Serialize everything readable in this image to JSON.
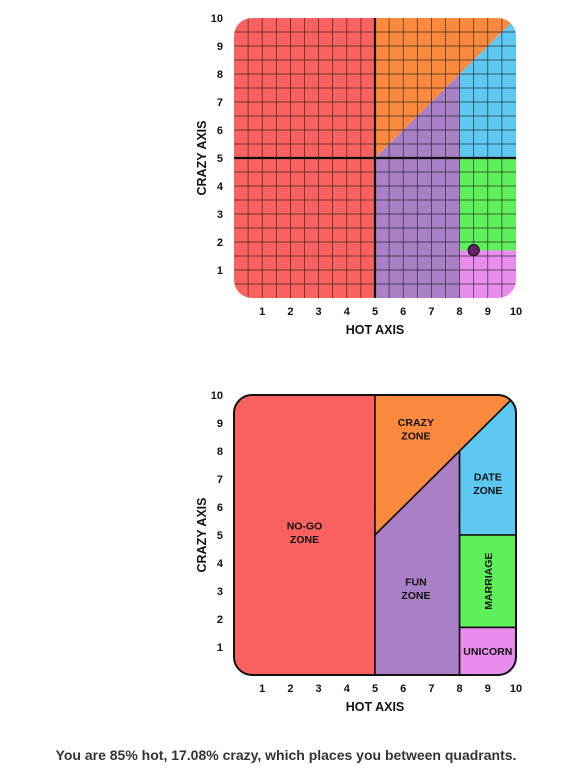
{
  "chart_data": [
    {
      "type": "scatter",
      "xlabel": "HOT AXIS",
      "ylabel": "CRAZY AXIS",
      "xlim": [
        0,
        10
      ],
      "ylim": [
        0,
        10
      ],
      "x_ticks": [
        "1",
        "2",
        "3",
        "4",
        "5",
        "6",
        "7",
        "8",
        "9",
        "10"
      ],
      "y_ticks": [
        "1",
        "2",
        "3",
        "4",
        "5",
        "6",
        "7",
        "8",
        "9",
        "10"
      ],
      "grid": true,
      "quadrant_lines": {
        "x": 5,
        "y": 5
      },
      "points": [
        {
          "x": 8.5,
          "y": 1.708
        }
      ],
      "regions": [
        {
          "id": "no-go",
          "color": "#f9625e",
          "polygon": [
            [
              0,
              0
            ],
            [
              5,
              0
            ],
            [
              5,
              10
            ],
            [
              0,
              10
            ]
          ]
        },
        {
          "id": "crazy",
          "color": "#fb8a3e",
          "polygon": [
            [
              5,
              5
            ],
            [
              10,
              10
            ],
            [
              5,
              10
            ]
          ]
        },
        {
          "id": "fun",
          "color": "#a97fc6",
          "polygon": [
            [
              5,
              0
            ],
            [
              8,
              0
            ],
            [
              8,
              8
            ],
            [
              5,
              5
            ]
          ]
        },
        {
          "id": "date",
          "color": "#5dc9f2",
          "polygon": [
            [
              8,
              5
            ],
            [
              10,
              5
            ],
            [
              10,
              10
            ],
            [
              8,
              8
            ]
          ]
        },
        {
          "id": "marriage",
          "color": "#5ef05a",
          "polygon": [
            [
              8,
              1.7
            ],
            [
              10,
              1.7
            ],
            [
              10,
              5
            ],
            [
              8,
              5
            ]
          ]
        },
        {
          "id": "unicorn",
          "color": "#ea8ced",
          "polygon": [
            [
              8,
              0
            ],
            [
              10,
              0
            ],
            [
              10,
              1.7
            ],
            [
              8,
              1.7
            ]
          ]
        }
      ]
    },
    {
      "type": "area",
      "xlabel": "HOT AXIS",
      "ylabel": "CRAZY AXIS",
      "xlim": [
        0,
        10
      ],
      "ylim": [
        0,
        10
      ],
      "x_ticks": [
        "1",
        "2",
        "3",
        "4",
        "5",
        "6",
        "7",
        "8",
        "9",
        "10"
      ],
      "y_ticks": [
        "1",
        "2",
        "3",
        "4",
        "5",
        "6",
        "7",
        "8",
        "9",
        "10"
      ],
      "grid": false,
      "zones": [
        {
          "id": "no-go",
          "lines": [
            "NO-GO",
            "ZONE"
          ],
          "color": "#f9625e",
          "polygon": [
            [
              0,
              0
            ],
            [
              5,
              0
            ],
            [
              5,
              10
            ],
            [
              0,
              10
            ]
          ],
          "label_at": [
            2.5,
            5.1
          ],
          "rotate": false
        },
        {
          "id": "crazy",
          "lines": [
            "CRAZY",
            "ZONE"
          ],
          "color": "#fb8a3e",
          "polygon": [
            [
              5,
              5
            ],
            [
              10,
              10
            ],
            [
              5,
              10
            ]
          ],
          "label_at": [
            6.45,
            8.8
          ],
          "rotate": false
        },
        {
          "id": "fun",
          "lines": [
            "FUN",
            "ZONE"
          ],
          "color": "#a97fc6",
          "polygon": [
            [
              5,
              0
            ],
            [
              8,
              0
            ],
            [
              8,
              8
            ],
            [
              5,
              5
            ]
          ],
          "label_at": [
            6.45,
            3.1
          ],
          "rotate": false
        },
        {
          "id": "date",
          "lines": [
            "DATE",
            "ZONE"
          ],
          "color": "#5dc9f2",
          "polygon": [
            [
              8,
              5
            ],
            [
              10,
              5
            ],
            [
              10,
              10
            ],
            [
              8,
              8
            ]
          ],
          "label_at": [
            9.0,
            6.85
          ],
          "rotate": false
        },
        {
          "id": "marriage",
          "lines": [
            "MARRIAGE"
          ],
          "color": "#5ef05a",
          "polygon": [
            [
              8,
              1.7
            ],
            [
              10,
              1.7
            ],
            [
              10,
              5
            ],
            [
              8,
              5
            ]
          ],
          "label_at": [
            9.0,
            3.35
          ],
          "rotate": true
        },
        {
          "id": "unicorn",
          "lines": [
            "UNICORN"
          ],
          "color": "#ea8ced",
          "polygon": [
            [
              8,
              0
            ],
            [
              10,
              0
            ],
            [
              10,
              1.7
            ],
            [
              8,
              1.7
            ]
          ],
          "label_at": [
            9.0,
            0.85
          ],
          "rotate": false
        }
      ]
    }
  ],
  "result_text": "You are 85% hot, 17.08% crazy, which places you between quadrants."
}
